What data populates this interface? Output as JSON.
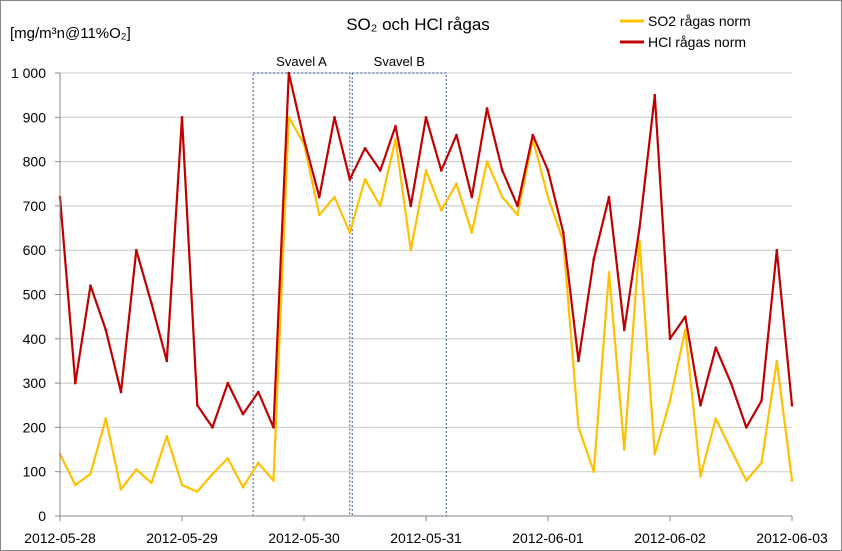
{
  "chart_data": {
    "type": "line",
    "title": "SO₂ och HCl rågas",
    "ylabel": "[mg/m³n@11%O₂]",
    "ylim": [
      0,
      1000
    ],
    "yticks": [
      0,
      100,
      200,
      300,
      400,
      500,
      600,
      700,
      800,
      900,
      1000
    ],
    "ytick_labels": [
      "0",
      "100",
      "200",
      "300",
      "400",
      "500",
      "600",
      "700",
      "800",
      "900",
      "1 000"
    ],
    "xlim": [
      "2012-05-28",
      "2012-06-03"
    ],
    "xtick_labels": [
      "2012-05-28",
      "2012-05-29",
      "2012-05-30",
      "2012-05-31",
      "2012-06-01",
      "2012-06-02",
      "2012-06-03"
    ],
    "grid": "horizontal",
    "legend_position": "top-right",
    "regions": [
      {
        "label": "Svavel A",
        "start": "2012-05-29 14:00",
        "end": "2012-05-30 09:00"
      },
      {
        "label": "Svavel B",
        "start": "2012-05-30 09:30",
        "end": "2012-05-31 04:00"
      }
    ],
    "series": [
      {
        "name": "SO2 rågas norm",
        "color": "#FFC000",
        "x": [
          "2012-05-28 00:00",
          "2012-05-28 03:00",
          "2012-05-28 06:00",
          "2012-05-28 09:00",
          "2012-05-28 12:00",
          "2012-05-28 15:00",
          "2012-05-28 18:00",
          "2012-05-28 21:00",
          "2012-05-29 00:00",
          "2012-05-29 03:00",
          "2012-05-29 06:00",
          "2012-05-29 09:00",
          "2012-05-29 12:00",
          "2012-05-29 15:00",
          "2012-05-29 18:00",
          "2012-05-29 21:00",
          "2012-05-30 00:00",
          "2012-05-30 03:00",
          "2012-05-30 06:00",
          "2012-05-30 09:00",
          "2012-05-30 12:00",
          "2012-05-30 15:00",
          "2012-05-30 18:00",
          "2012-05-30 21:00",
          "2012-05-31 00:00",
          "2012-05-31 03:00",
          "2012-05-31 06:00",
          "2012-05-31 09:00",
          "2012-05-31 12:00",
          "2012-05-31 15:00",
          "2012-05-31 18:00",
          "2012-05-31 21:00",
          "2012-06-01 00:00",
          "2012-06-01 03:00",
          "2012-06-01 06:00",
          "2012-06-01 09:00",
          "2012-06-01 12:00",
          "2012-06-01 15:00",
          "2012-06-01 18:00",
          "2012-06-01 21:00",
          "2012-06-02 00:00",
          "2012-06-02 03:00",
          "2012-06-02 06:00",
          "2012-06-02 09:00",
          "2012-06-02 12:00",
          "2012-06-02 15:00",
          "2012-06-02 18:00",
          "2012-06-02 21:00",
          "2012-06-03 00:00"
        ],
        "values": [
          140,
          70,
          95,
          220,
          60,
          105,
          75,
          180,
          70,
          55,
          95,
          130,
          65,
          120,
          80,
          900,
          840,
          680,
          720,
          640,
          760,
          700,
          850,
          600,
          780,
          690,
          750,
          640,
          800,
          720,
          680,
          850,
          720,
          620,
          200,
          100,
          550,
          150,
          620,
          140,
          260,
          420,
          90,
          220,
          150,
          80,
          120,
          350,
          80
        ]
      },
      {
        "name": "HCl rågas norm",
        "color": "#C00000",
        "x": [
          "2012-05-28 00:00",
          "2012-05-28 03:00",
          "2012-05-28 06:00",
          "2012-05-28 09:00",
          "2012-05-28 12:00",
          "2012-05-28 15:00",
          "2012-05-28 18:00",
          "2012-05-28 21:00",
          "2012-05-29 00:00",
          "2012-05-29 03:00",
          "2012-05-29 06:00",
          "2012-05-29 09:00",
          "2012-05-29 12:00",
          "2012-05-29 15:00",
          "2012-05-29 18:00",
          "2012-05-29 21:00",
          "2012-05-30 00:00",
          "2012-05-30 03:00",
          "2012-05-30 06:00",
          "2012-05-30 09:00",
          "2012-05-30 12:00",
          "2012-05-30 15:00",
          "2012-05-30 18:00",
          "2012-05-30 21:00",
          "2012-05-31 00:00",
          "2012-05-31 03:00",
          "2012-05-31 06:00",
          "2012-05-31 09:00",
          "2012-05-31 12:00",
          "2012-05-31 15:00",
          "2012-05-31 18:00",
          "2012-05-31 21:00",
          "2012-06-01 00:00",
          "2012-06-01 03:00",
          "2012-06-01 06:00",
          "2012-06-01 09:00",
          "2012-06-01 12:00",
          "2012-06-01 15:00",
          "2012-06-01 18:00",
          "2012-06-01 21:00",
          "2012-06-02 00:00",
          "2012-06-02 03:00",
          "2012-06-02 06:00",
          "2012-06-02 09:00",
          "2012-06-02 12:00",
          "2012-06-02 15:00",
          "2012-06-02 18:00",
          "2012-06-02 21:00",
          "2012-06-03 00:00"
        ],
        "values": [
          720,
          300,
          520,
          420,
          280,
          600,
          480,
          350,
          900,
          250,
          200,
          300,
          230,
          280,
          200,
          1000,
          850,
          720,
          900,
          760,
          830,
          780,
          880,
          700,
          900,
          780,
          860,
          720,
          920,
          780,
          700,
          860,
          780,
          640,
          350,
          580,
          720,
          420,
          650,
          950,
          400,
          450,
          250,
          380,
          300,
          200,
          260,
          600,
          250
        ]
      }
    ]
  }
}
